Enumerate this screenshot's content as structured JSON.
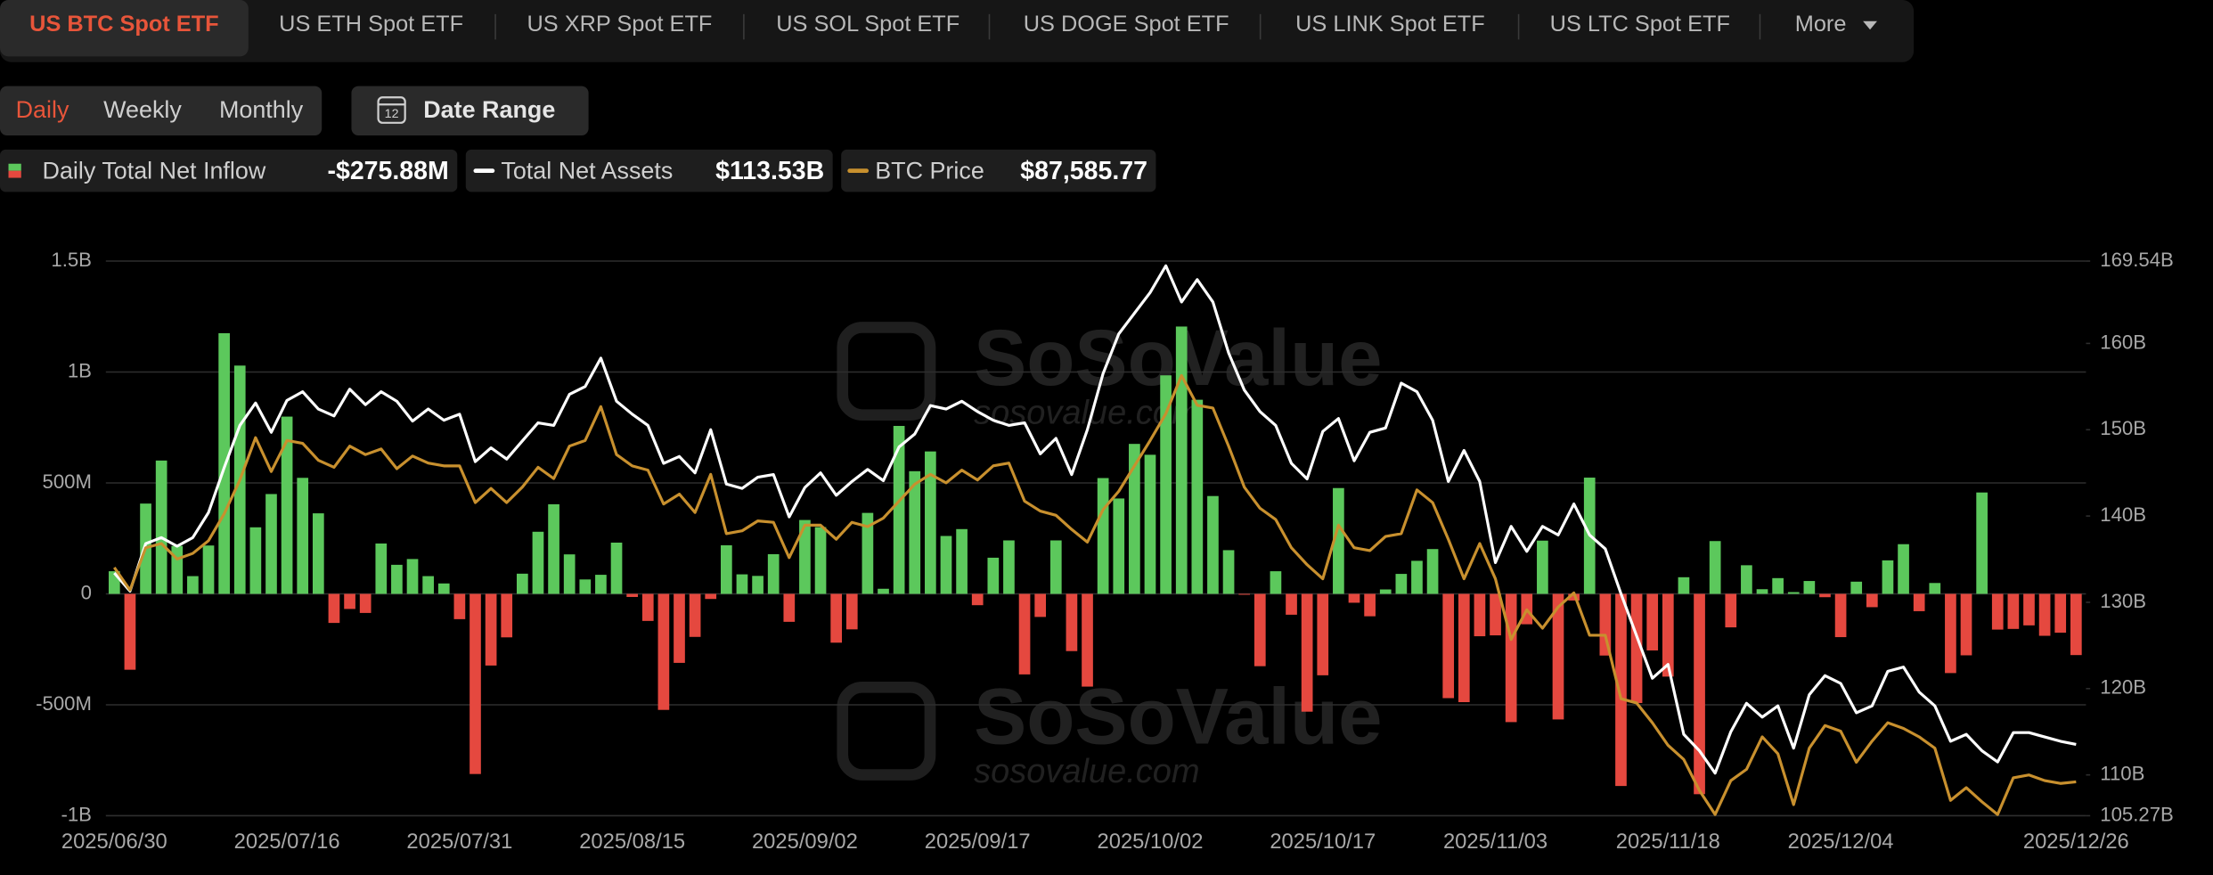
{
  "tabs": [
    "US BTC Spot ETF",
    "US ETH Spot ETF",
    "US XRP Spot ETF",
    "US SOL Spot ETF",
    "US DOGE Spot ETF",
    "US LINK Spot ETF",
    "US LTC Spot ETF"
  ],
  "more": "More",
  "periods": [
    "Daily",
    "Weekly",
    "Monthly"
  ],
  "date_range_icon": "12",
  "date_range": "Date Range",
  "watermark": "SoSoValue",
  "watermark_url": "sosovalue.com",
  "chart_data": {
    "type": "combo",
    "categories": [
      "2025/06/30",
      null,
      null,
      null,
      null,
      null,
      null,
      null,
      null,
      null,
      null,
      "2025/07/16",
      null,
      null,
      null,
      null,
      null,
      null,
      null,
      null,
      null,
      null,
      "2025/07/31",
      null,
      null,
      null,
      null,
      null,
      null,
      null,
      null,
      null,
      null,
      "2025/08/15",
      null,
      null,
      null,
      null,
      null,
      null,
      null,
      null,
      null,
      null,
      "2025/09/02",
      null,
      null,
      null,
      null,
      null,
      null,
      null,
      null,
      null,
      null,
      "2025/09/17",
      null,
      null,
      null,
      null,
      null,
      null,
      null,
      null,
      null,
      null,
      "2025/10/02",
      null,
      null,
      null,
      null,
      null,
      null,
      null,
      null,
      null,
      null,
      "2025/10/17",
      null,
      null,
      null,
      null,
      null,
      null,
      null,
      null,
      null,
      null,
      "2025/11/03",
      null,
      null,
      null,
      null,
      null,
      null,
      null,
      null,
      null,
      null,
      "2025/11/18",
      null,
      null,
      null,
      null,
      null,
      null,
      null,
      null,
      null,
      null,
      "2025/12/04",
      null,
      null,
      null,
      null,
      null,
      null,
      null,
      null,
      null,
      null,
      null,
      null,
      null,
      null,
      "2025/12/26"
    ],
    "ylim": [
      -1000,
      1500
    ],
    "yticks": [
      {
        "value": 1500,
        "label": "1.5B"
      },
      {
        "value": 1000,
        "label": "1B"
      },
      {
        "value": 500,
        "label": "500M"
      },
      0,
      {
        "value": -500,
        "label": "-500M"
      },
      {
        "value": -1000,
        "label": "-1B"
      }
    ],
    "y2lim": [
      105.27,
      169.54
    ],
    "y2ticks": [
      {
        "value": 169.54,
        "label": "169.54B"
      },
      {
        "value": 160,
        "label": "160B"
      },
      {
        "value": 150,
        "label": "150B"
      },
      {
        "value": 140,
        "label": "140B"
      },
      {
        "value": 130,
        "label": "130B"
      },
      {
        "value": 120,
        "label": "120B"
      },
      {
        "value": 110,
        "label": "110B"
      },
      {
        "value": 105.27,
        "label": "105.27B"
      }
    ],
    "y3lim": [
      84500,
      135000
    ],
    "grid": true,
    "series": [
      {
        "name": "Daily Total Net Inflow",
        "legend_value": "-$275.88M",
        "type": "bar",
        "axis": "y",
        "color": "#5cc85c",
        "negative_color": "#e5483f",
        "values": [
          102,
          -342,
          407,
          601,
          216,
          80,
          218,
          1175,
          1029,
          300,
          450,
          799,
          523,
          363,
          -131,
          -68,
          -86,
          227,
          131,
          157,
          80,
          47,
          -114,
          -812,
          -323,
          -196,
          91,
          280,
          404,
          178,
          65,
          86,
          231,
          -14,
          -122,
          -523,
          -311,
          -194,
          -23,
          219,
          88,
          81,
          179,
          -126,
          333,
          301,
          -220,
          -160,
          365,
          23,
          757,
          553,
          642,
          261,
          292,
          -51,
          163,
          241,
          -363,
          -104,
          241,
          -258,
          -418,
          522,
          430,
          676,
          627,
          985,
          1205,
          875,
          441,
          197,
          -4,
          -326,
          102,
          -94,
          -531,
          -367,
          477,
          -40,
          -101,
          20,
          90,
          149,
          202,
          -470,
          -488,
          -191,
          -187,
          -578,
          -137,
          240,
          -566,
          -30,
          524,
          -278,
          -866,
          -492,
          -255,
          -373,
          75,
          -903,
          238,
          -151,
          129,
          21,
          71,
          8,
          58,
          -15,
          -195,
          55,
          -60,
          151,
          224,
          -78,
          49,
          -357,
          -277,
          457,
          -161,
          -158,
          -142,
          -189,
          -175,
          -275.88
        ]
      },
      {
        "name": "Total Net Assets",
        "legend_value": "$113.53B",
        "type": "line",
        "axis": "y2",
        "color": "#ffffff",
        "values": [
          133.4,
          131.3,
          136.8,
          137.5,
          136.5,
          137.5,
          140.4,
          145.6,
          150.5,
          153.1,
          149.7,
          153.4,
          154.4,
          152.4,
          151.6,
          154.7,
          152.9,
          154.4,
          153.3,
          151.0,
          152.4,
          151.1,
          151.8,
          146.3,
          147.9,
          146.6,
          148.7,
          150.8,
          150.5,
          154.1,
          155.0,
          158.3,
          153.3,
          151.8,
          150.5,
          146.1,
          146.9,
          145.0,
          150.0,
          143.7,
          143.2,
          144.5,
          144.8,
          139.9,
          143.3,
          145.0,
          142.4,
          144.0,
          145.4,
          144.1,
          148.0,
          149.5,
          152.8,
          152.4,
          153.3,
          152.1,
          151.1,
          150.5,
          150.8,
          147.2,
          149.0,
          144.8,
          150.0,
          156.5,
          161.1,
          163.5,
          165.9,
          169.0,
          164.8,
          167.4,
          164.8,
          158.9,
          154.6,
          152.1,
          150.5,
          146.1,
          144.3,
          149.8,
          151.3,
          146.4,
          149.7,
          150.2,
          155.4,
          154.4,
          151.1,
          144.0,
          147.6,
          144.0,
          134.6,
          138.8,
          135.9,
          138.8,
          137.8,
          141.4,
          137.8,
          136.2,
          131.0,
          126.1,
          121.2,
          122.8,
          114.7,
          112.8,
          110.2,
          115.0,
          118.3,
          116.7,
          118.0,
          113.1,
          119.3,
          121.5,
          120.6,
          117.2,
          118.0,
          122.0,
          122.5,
          119.6,
          118.0,
          113.9,
          114.7,
          112.8,
          111.5,
          114.9,
          114.9,
          114.4,
          113.9,
          113.53
        ]
      },
      {
        "name": "BTC Price",
        "legend_value": "$87,585.77",
        "type": "line",
        "axis": "y3",
        "color": "#c8902e",
        "values": [
          107100,
          105044,
          108899,
          109285,
          107871,
          108385,
          109541,
          111983,
          115067,
          118922,
          115838,
          118665,
          118408,
          116866,
          116224,
          118151,
          117380,
          117894,
          116095,
          117251,
          116609,
          116352,
          116352,
          113011,
          114296,
          113011,
          114424,
          116224,
          115196,
          118151,
          118665,
          121749,
          117380,
          116352,
          115967,
          112883,
          113782,
          112112,
          115581,
          110184,
          110441,
          111341,
          111212,
          107999,
          110955,
          110955,
          109670,
          111212,
          110827,
          111598,
          113140,
          114682,
          115581,
          114811,
          115967,
          115067,
          116352,
          116609,
          113140,
          112240,
          111855,
          110570,
          109413,
          112369,
          114039,
          116352,
          118665,
          121106,
          124576,
          121878,
          121621,
          118151,
          114424,
          112497,
          111469,
          108899,
          107357,
          106072,
          110955,
          108899,
          108642,
          109927,
          110184,
          114167,
          113011,
          109670,
          106072,
          109285,
          106072,
          100547,
          103245,
          101575,
          103502,
          104787,
          100932,
          100932,
          95150,
          94764,
          92965,
          90909,
          89624,
          86797,
          84613,
          87697,
          88725,
          91680,
          90138,
          85512,
          90652,
          92708,
          92194,
          89367,
          91295,
          92965,
          92451,
          91680,
          90652,
          85897,
          87054,
          85769,
          84613,
          87954,
          88211,
          87697,
          87440,
          87585.77
        ]
      }
    ]
  }
}
